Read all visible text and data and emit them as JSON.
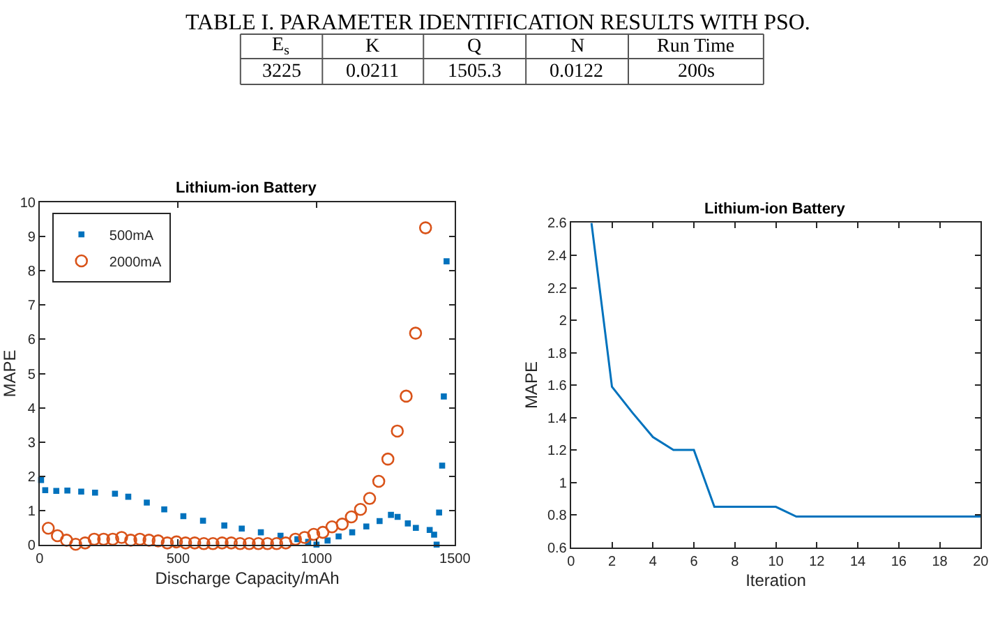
{
  "chart_data": [
    {
      "type": "other",
      "title": "TABLE I. PARAMETER IDENTIFICATION RESULTS WITH PSO.",
      "categories": [
        "E$_{s}$",
        "K",
        "Q",
        "N",
        "Run Time"
      ],
      "annotations": [
        "3225",
        "0.0211",
        "1505.3",
        "0.0122",
        "200s"
      ]
    },
    {
      "type": "scatter",
      "title": "Lithium-ion Battery",
      "xlabel": "Discharge Capacity/mAh",
      "ylabel": "MAPE",
      "xlim": [
        0,
        1500
      ],
      "xticks": [
        0,
        500,
        1000,
        1500
      ],
      "ylim": [
        0,
        10
      ],
      "yticks": [
        0,
        1,
        2,
        3,
        4,
        5,
        6,
        7,
        8,
        9,
        10
      ],
      "legend": "top left",
      "series": [
        {
          "name": "500mA",
          "color": "#0072bd",
          "marker": "square",
          "x": [
            5,
            20,
            60,
            100,
            150,
            200,
            272,
            320,
            387,
            450,
            519,
            590,
            667,
            730,
            799,
            870,
            931,
            970,
            1000,
            1040,
            1080,
            1129,
            1180,
            1228,
            1269,
            1293,
            1330,
            1359,
            1409,
            1425,
            1434,
            1443,
            1454,
            1460,
            1470
          ],
          "values": [
            1.89,
            1.59,
            1.57,
            1.58,
            1.55,
            1.52,
            1.49,
            1.4,
            1.23,
            1.03,
            0.83,
            0.7,
            0.56,
            0.47,
            0.36,
            0.26,
            0.16,
            0.08,
            0.0,
            0.12,
            0.24,
            0.36,
            0.53,
            0.69,
            0.87,
            0.81,
            0.62,
            0.49,
            0.43,
            0.29,
            0.0,
            0.94,
            2.31,
            4.33,
            8.28
          ]
        },
        {
          "name": "2000mA",
          "color": "#d95319",
          "marker": "circle",
          "x": [
            31,
            64,
            97,
            130,
            164,
            197,
            231,
            264,
            296,
            329,
            362,
            395,
            428,
            461,
            494,
            527,
            560,
            593,
            626,
            659,
            692,
            724,
            757,
            790,
            823,
            856,
            889,
            924,
            957,
            990,
            1023,
            1056,
            1093,
            1126,
            1159,
            1192,
            1225,
            1258,
            1292,
            1324,
            1358,
            1394
          ],
          "values": [
            0.48,
            0.26,
            0.13,
            0.01,
            0.05,
            0.16,
            0.16,
            0.16,
            0.21,
            0.13,
            0.16,
            0.13,
            0.11,
            0.05,
            0.08,
            0.05,
            0.05,
            0.03,
            0.03,
            0.05,
            0.05,
            0.03,
            0.03,
            0.03,
            0.03,
            0.03,
            0.05,
            0.16,
            0.21,
            0.3,
            0.36,
            0.52,
            0.6,
            0.81,
            1.03,
            1.35,
            1.85,
            2.5,
            3.32,
            4.34,
            6.18,
            9.26
          ]
        }
      ]
    },
    {
      "type": "line",
      "title": "Lithium-ion Battery",
      "xlabel": "Iteration",
      "ylabel": "MAPE",
      "xlim": [
        0,
        20
      ],
      "xticks": [
        0,
        2,
        4,
        6,
        8,
        10,
        12,
        14,
        16,
        18,
        20
      ],
      "ylim": [
        0.6,
        2.6
      ],
      "yticks": [
        0.6,
        0.8,
        1,
        1.2,
        1.4,
        1.6,
        1.8,
        2,
        2.2,
        2.4,
        2.6
      ],
      "legend": false,
      "marker": "none",
      "line_style": "solid",
      "x": [
        1,
        2,
        3,
        4,
        5,
        6,
        7,
        8,
        9,
        10,
        11,
        12,
        13,
        14,
        15,
        16,
        17,
        18,
        19,
        20
      ],
      "series": [
        {
          "color": "#0072bd",
          "values": [
            2.6,
            1.59,
            1.43,
            1.28,
            1.2,
            1.2,
            0.85,
            0.85,
            0.85,
            0.85,
            0.79,
            0.79,
            0.79,
            0.79,
            0.79,
            0.79,
            0.79,
            0.79,
            0.79,
            0.79
          ]
        }
      ]
    }
  ]
}
